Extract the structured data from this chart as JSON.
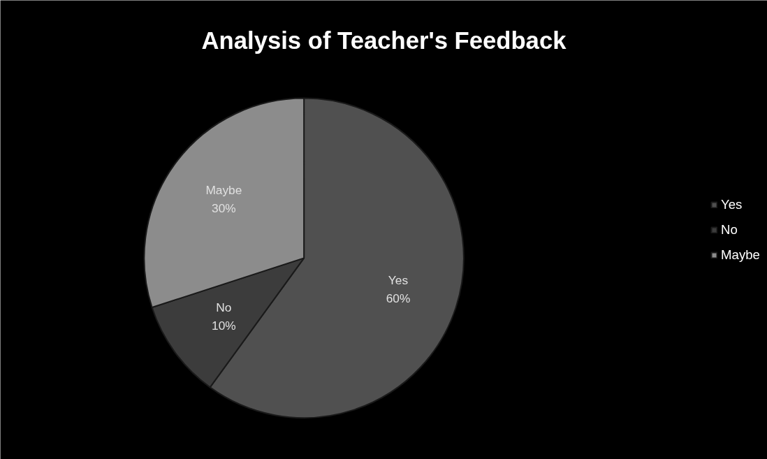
{
  "chart_data": {
    "type": "pie",
    "title": "Analysis of Teacher's Feedback",
    "categories": [
      "Yes",
      "No",
      "Maybe"
    ],
    "values": [
      60,
      10,
      30
    ],
    "colors": [
      "#505050",
      "#3c3c3c",
      "#8c8c8c"
    ],
    "value_labels": [
      "60%",
      "10%",
      "30%"
    ],
    "legend": "right"
  }
}
